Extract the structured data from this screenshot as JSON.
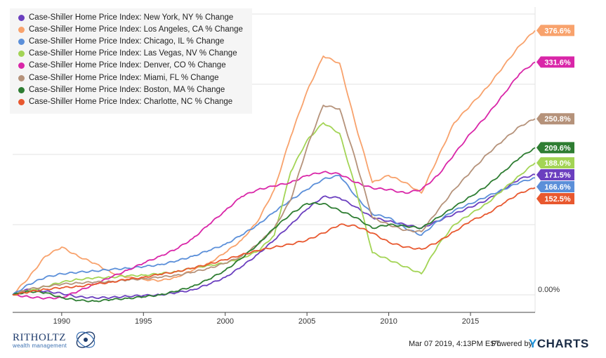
{
  "chart_data": {
    "type": "line",
    "title": "",
    "xlabel": "",
    "ylabel": "",
    "x_ticks": [
      "1990",
      "1995",
      "2000",
      "2005",
      "2010",
      "2015"
    ],
    "xlim": [
      1987.0,
      2018.95
    ],
    "ylim": [
      -25,
      410
    ],
    "y_zero_label": "0.00%",
    "grid": true,
    "legend_position": "top-left",
    "series": [
      {
        "name": "Case-Shiller Home Price Index: New York, NY % Change",
        "color": "#6b3fbf",
        "end_label": "171.5%",
        "points": [
          [
            1987,
            0
          ],
          [
            1988,
            8
          ],
          [
            1989,
            5
          ],
          [
            1990,
            2
          ],
          [
            1991,
            -3
          ],
          [
            1992,
            -4
          ],
          [
            1993,
            -4
          ],
          [
            1994,
            -2
          ],
          [
            1995,
            -1
          ],
          [
            1996,
            0
          ],
          [
            1997,
            3
          ],
          [
            1998,
            7
          ],
          [
            1999,
            15
          ],
          [
            2000,
            25
          ],
          [
            2001,
            40
          ],
          [
            2002,
            58
          ],
          [
            2003,
            78
          ],
          [
            2004,
            100
          ],
          [
            2005,
            122
          ],
          [
            2006,
            140
          ],
          [
            2007,
            138
          ],
          [
            2008,
            125
          ],
          [
            2009,
            110
          ],
          [
            2010,
            105
          ],
          [
            2011,
            100
          ],
          [
            2012,
            95
          ],
          [
            2013,
            105
          ],
          [
            2014,
            115
          ],
          [
            2015,
            125
          ],
          [
            2016,
            135
          ],
          [
            2017,
            150
          ],
          [
            2018,
            165
          ],
          [
            2018.95,
            171.5
          ]
        ]
      },
      {
        "name": "Case-Shiller Home Price Index: Los Angeles, CA % Change",
        "color": "#f8a26c",
        "end_label": "376.6%",
        "points": [
          [
            1987,
            0
          ],
          [
            1988,
            25
          ],
          [
            1989,
            55
          ],
          [
            1990,
            68
          ],
          [
            1991,
            55
          ],
          [
            1992,
            45
          ],
          [
            1993,
            32
          ],
          [
            1994,
            25
          ],
          [
            1995,
            22
          ],
          [
            1996,
            20
          ],
          [
            1997,
            25
          ],
          [
            1998,
            35
          ],
          [
            1999,
            45
          ],
          [
            2000,
            60
          ],
          [
            2001,
            78
          ],
          [
            2002,
            105
          ],
          [
            2003,
            150
          ],
          [
            2004,
            225
          ],
          [
            2005,
            290
          ],
          [
            2006,
            340
          ],
          [
            2007,
            330
          ],
          [
            2008,
            240
          ],
          [
            2009,
            160
          ],
          [
            2010,
            170
          ],
          [
            2011,
            160
          ],
          [
            2012,
            145
          ],
          [
            2013,
            195
          ],
          [
            2014,
            245
          ],
          [
            2015,
            270
          ],
          [
            2016,
            295
          ],
          [
            2017,
            325
          ],
          [
            2018,
            355
          ],
          [
            2018.95,
            376.6
          ]
        ]
      },
      {
        "name": "Case-Shiller Home Price Index: Chicago, IL % Change",
        "color": "#5b8fd9",
        "end_label": "166.6%",
        "points": [
          [
            1987,
            0
          ],
          [
            1988,
            15
          ],
          [
            1989,
            25
          ],
          [
            1990,
            30
          ],
          [
            1991,
            32
          ],
          [
            1992,
            34
          ],
          [
            1993,
            36
          ],
          [
            1994,
            38
          ],
          [
            1995,
            40
          ],
          [
            1996,
            43
          ],
          [
            1997,
            48
          ],
          [
            1998,
            55
          ],
          [
            1999,
            63
          ],
          [
            2000,
            72
          ],
          [
            2001,
            85
          ],
          [
            2002,
            100
          ],
          [
            2003,
            118
          ],
          [
            2004,
            135
          ],
          [
            2005,
            150
          ],
          [
            2006,
            165
          ],
          [
            2007,
            170
          ],
          [
            2008,
            140
          ],
          [
            2009,
            115
          ],
          [
            2010,
            110
          ],
          [
            2011,
            95
          ],
          [
            2012,
            85
          ],
          [
            2013,
            105
          ],
          [
            2014,
            120
          ],
          [
            2015,
            130
          ],
          [
            2016,
            140
          ],
          [
            2017,
            150
          ],
          [
            2018,
            160
          ],
          [
            2018.95,
            166.6
          ]
        ]
      },
      {
        "name": "Case-Shiller Home Price Index: Las Vegas, NV % Change",
        "color": "#a3d455",
        "end_label": "188.0%",
        "points": [
          [
            1987,
            0
          ],
          [
            1988,
            5
          ],
          [
            1989,
            12
          ],
          [
            1990,
            18
          ],
          [
            1991,
            22
          ],
          [
            1992,
            24
          ],
          [
            1993,
            25
          ],
          [
            1994,
            27
          ],
          [
            1995,
            28
          ],
          [
            1996,
            30
          ],
          [
            1997,
            33
          ],
          [
            1998,
            38
          ],
          [
            1999,
            42
          ],
          [
            2000,
            45
          ],
          [
            2001,
            52
          ],
          [
            2002,
            62
          ],
          [
            2003,
            85
          ],
          [
            2004,
            175
          ],
          [
            2005,
            220
          ],
          [
            2006,
            245
          ],
          [
            2007,
            230
          ],
          [
            2008,
            150
          ],
          [
            2009,
            60
          ],
          [
            2010,
            50
          ],
          [
            2011,
            40
          ],
          [
            2012,
            30
          ],
          [
            2013,
            70
          ],
          [
            2014,
            100
          ],
          [
            2015,
            115
          ],
          [
            2016,
            130
          ],
          [
            2017,
            150
          ],
          [
            2018,
            170
          ],
          [
            2018.95,
            188
          ]
        ]
      },
      {
        "name": "Case-Shiller Home Price Index: Denver, CO % Change",
        "color": "#d926a8",
        "end_label": "331.6%",
        "points": [
          [
            1987,
            0
          ],
          [
            1988,
            -3
          ],
          [
            1989,
            -5
          ],
          [
            1990,
            -4
          ],
          [
            1991,
            5
          ],
          [
            1992,
            15
          ],
          [
            1993,
            25
          ],
          [
            1994,
            35
          ],
          [
            1995,
            45
          ],
          [
            1996,
            55
          ],
          [
            1997,
            65
          ],
          [
            1998,
            80
          ],
          [
            1999,
            100
          ],
          [
            2000,
            120
          ],
          [
            2001,
            140
          ],
          [
            2002,
            150
          ],
          [
            2003,
            155
          ],
          [
            2004,
            160
          ],
          [
            2005,
            170
          ],
          [
            2006,
            175
          ],
          [
            2007,
            172
          ],
          [
            2008,
            160
          ],
          [
            2009,
            152
          ],
          [
            2010,
            150
          ],
          [
            2011,
            145
          ],
          [
            2012,
            150
          ],
          [
            2013,
            170
          ],
          [
            2014,
            200
          ],
          [
            2015,
            230
          ],
          [
            2016,
            255
          ],
          [
            2017,
            285
          ],
          [
            2018,
            315
          ],
          [
            2018.95,
            331.6
          ]
        ]
      },
      {
        "name": "Case-Shiller Home Price Index: Miami, FL % Change",
        "color": "#b5927a",
        "end_label": "250.8%",
        "points": [
          [
            1987,
            0
          ],
          [
            1988,
            8
          ],
          [
            1989,
            12
          ],
          [
            1990,
            15
          ],
          [
            1991,
            17
          ],
          [
            1992,
            18
          ],
          [
            1993,
            19
          ],
          [
            1994,
            21
          ],
          [
            1995,
            23
          ],
          [
            1996,
            25
          ],
          [
            1997,
            28
          ],
          [
            1998,
            32
          ],
          [
            1999,
            38
          ],
          [
            2000,
            45
          ],
          [
            2001,
            55
          ],
          [
            2002,
            72
          ],
          [
            2003,
            95
          ],
          [
            2004,
            135
          ],
          [
            2005,
            210
          ],
          [
            2006,
            270
          ],
          [
            2007,
            265
          ],
          [
            2008,
            190
          ],
          [
            2009,
            110
          ],
          [
            2010,
            100
          ],
          [
            2011,
            92
          ],
          [
            2012,
            90
          ],
          [
            2013,
            120
          ],
          [
            2014,
            150
          ],
          [
            2015,
            175
          ],
          [
            2016,
            200
          ],
          [
            2017,
            220
          ],
          [
            2018,
            240
          ],
          [
            2018.95,
            250.8
          ]
        ]
      },
      {
        "name": "Case-Shiller Home Price Index: Boston, MA % Change",
        "color": "#2e7d32",
        "end_label": "209.6%",
        "points": [
          [
            1987,
            0
          ],
          [
            1988,
            5
          ],
          [
            1989,
            3
          ],
          [
            1990,
            -4
          ],
          [
            1991,
            -8
          ],
          [
            1992,
            -9
          ],
          [
            1993,
            -7
          ],
          [
            1994,
            -5
          ],
          [
            1995,
            -3
          ],
          [
            1996,
            0
          ],
          [
            1997,
            5
          ],
          [
            1998,
            12
          ],
          [
            1999,
            22
          ],
          [
            2000,
            35
          ],
          [
            2001,
            52
          ],
          [
            2002,
            72
          ],
          [
            2003,
            95
          ],
          [
            2004,
            115
          ],
          [
            2005,
            130
          ],
          [
            2006,
            130
          ],
          [
            2007,
            120
          ],
          [
            2008,
            110
          ],
          [
            2009,
            95
          ],
          [
            2010,
            100
          ],
          [
            2011,
            98
          ],
          [
            2012,
            95
          ],
          [
            2013,
            110
          ],
          [
            2014,
            125
          ],
          [
            2015,
            140
          ],
          [
            2016,
            155
          ],
          [
            2017,
            175
          ],
          [
            2018,
            195
          ],
          [
            2018.95,
            209.6
          ]
        ]
      },
      {
        "name": "Case-Shiller Home Price Index: Charlotte, NC % Change",
        "color": "#e8582f",
        "end_label": "152.5%",
        "points": [
          [
            1987,
            0
          ],
          [
            1988,
            4
          ],
          [
            1989,
            8
          ],
          [
            1990,
            10
          ],
          [
            1991,
            12
          ],
          [
            1992,
            15
          ],
          [
            1993,
            18
          ],
          [
            1994,
            22
          ],
          [
            1995,
            25
          ],
          [
            1996,
            29
          ],
          [
            1997,
            33
          ],
          [
            1998,
            38
          ],
          [
            1999,
            44
          ],
          [
            2000,
            50
          ],
          [
            2001,
            57
          ],
          [
            2002,
            63
          ],
          [
            2003,
            68
          ],
          [
            2004,
            72
          ],
          [
            2005,
            78
          ],
          [
            2006,
            88
          ],
          [
            2007,
            100
          ],
          [
            2008,
            98
          ],
          [
            2009,
            88
          ],
          [
            2010,
            75
          ],
          [
            2011,
            68
          ],
          [
            2012,
            65
          ],
          [
            2013,
            75
          ],
          [
            2014,
            90
          ],
          [
            2015,
            105
          ],
          [
            2016,
            115
          ],
          [
            2017,
            130
          ],
          [
            2018,
            145
          ],
          [
            2018.95,
            152.5
          ]
        ]
      }
    ]
  },
  "footer": {
    "timestamp": "Mar 07 2019, 4:13PM EST.",
    "powered_by": "Powered by",
    "brand": "CHARTS",
    "brand_y": "Y"
  },
  "logo": {
    "name": "RITHOLTZ",
    "subtitle": "wealth management"
  }
}
